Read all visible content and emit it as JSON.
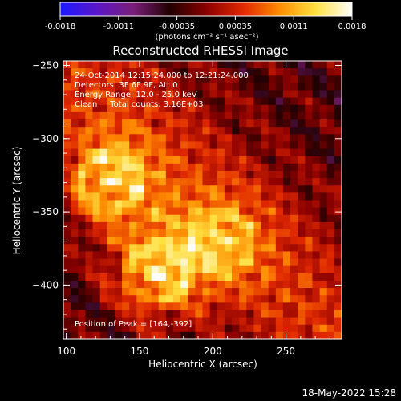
{
  "chart_data": {
    "type": "heatmap",
    "title": "Reconstructed RHESSI Image",
    "xlabel": "Heliocentric X (arcsec)",
    "ylabel": "Heliocentric Y (arcsec)",
    "xlim": [
      98,
      288
    ],
    "ylim": [
      -437,
      -247
    ],
    "xticks": [
      100,
      150,
      200,
      250
    ],
    "yticks": [
      -250,
      -300,
      -350,
      -400
    ],
    "colorbar": {
      "range": [
        -0.0018,
        0.0018
      ],
      "ticks": [
        "-0.0018",
        "-0.0011",
        "-0.00035",
        "0.00035",
        "0.0011",
        "0.0018"
      ],
      "units": "(photons cm⁻² s⁻¹ asec⁻²)",
      "colormap": [
        "#1a1aff",
        "#5a16c8",
        "#7a1e7a",
        "#200000",
        "#8a0000",
        "#e02800",
        "#ff8a00",
        "#ffe040",
        "#ffffff"
      ]
    },
    "annotations": [
      "24-Oct-2014 12:15:24.000 to 12:21:24.000",
      "Detectors: 3F 6F 9F, Att 0",
      "Energy Range: 12.0 - 25.0 keV",
      "Clean     Total counts: 3.16E+03"
    ],
    "peak_label": "Position of Peak = [164,-392]",
    "sources": [
      {
        "x": 129,
        "y": -330,
        "intensity": 0.0016
      },
      {
        "x": 162,
        "y": -392,
        "intensity": 0.0018
      },
      {
        "x": 205,
        "y": -370,
        "intensity": 0.0011
      }
    ]
  },
  "footer": {
    "date": "18-May-2022 15:28"
  }
}
